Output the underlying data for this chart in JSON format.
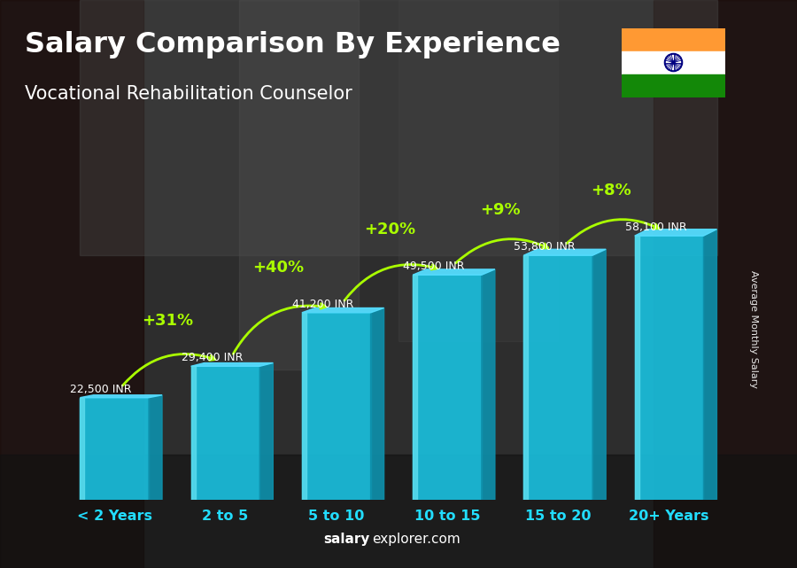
{
  "categories": [
    "< 2 Years",
    "2 to 5",
    "5 to 10",
    "10 to 15",
    "15 to 20",
    "20+ Years"
  ],
  "values": [
    22500,
    29400,
    41200,
    49500,
    53800,
    58100
  ],
  "value_labels": [
    "22,500 INR",
    "29,400 INR",
    "41,200 INR",
    "49,500 INR",
    "53,800 INR",
    "58,100 INR"
  ],
  "pct_labels": [
    null,
    "+31%",
    "+40%",
    "+20%",
    "+9%",
    "+8%"
  ],
  "bar_color_main": "#1ABEDC",
  "bar_color_left": "#5DDDEE",
  "bar_color_right": "#0E8FAA",
  "bar_color_top": "#55DDFF",
  "title": "Salary Comparison By Experience",
  "subtitle": "Vocational Rehabilitation Counselor",
  "ylabel": "Average Monthly Salary",
  "footer_plain": "explorer.com",
  "footer_bold": "salary",
  "title_color": "#FFFFFF",
  "subtitle_color": "#FFFFFF",
  "label_color": "#FFFFFF",
  "pct_color": "#AAFF00",
  "cat_color": "#22DDFF",
  "bar_width": 0.62,
  "ylim": [
    0,
    75000
  ],
  "bg_colors": [
    "#3a2a1a",
    "#1a1a2e",
    "#2a1a2e",
    "#1a2a1e"
  ],
  "flag_saffron": "#FF9933",
  "flag_white": "#FFFFFF",
  "flag_green": "#138808",
  "flag_navy": "#000080"
}
